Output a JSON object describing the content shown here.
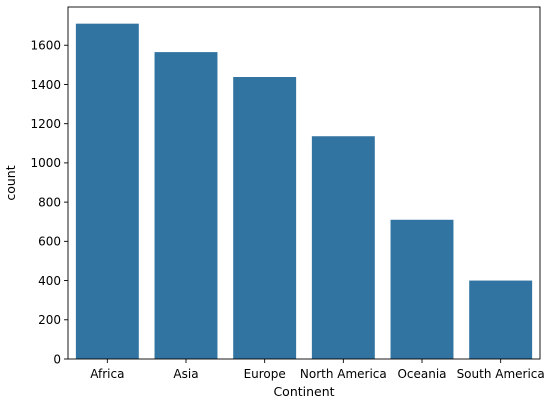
{
  "chart_data": {
    "type": "bar",
    "title": "",
    "xlabel": "Continent",
    "ylabel": "count",
    "categories": [
      "Africa",
      "Asia",
      "Europe",
      "North America",
      "Oceania",
      "South America"
    ],
    "values": [
      1710,
      1565,
      1438,
      1136,
      710,
      400
    ],
    "yticks": [
      0,
      200,
      400,
      600,
      800,
      1000,
      1200,
      1400,
      1600
    ],
    "ylim": [
      0,
      1795
    ],
    "grid": false,
    "legend": "none",
    "bar_color": "#3274a1"
  }
}
